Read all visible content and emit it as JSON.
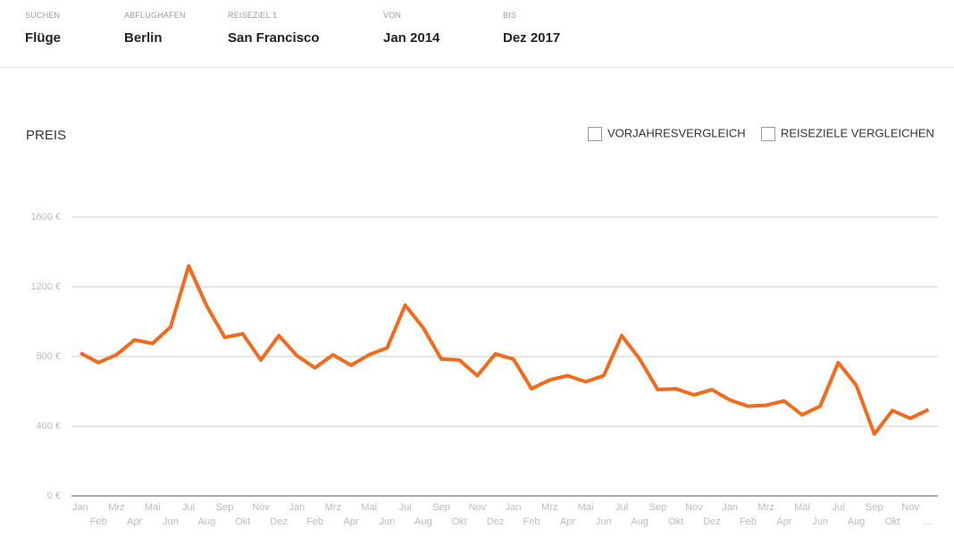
{
  "header": {
    "fields": [
      {
        "label": "SUCHEN",
        "value": "Flüge"
      },
      {
        "label": "ABFLUGHAFEN",
        "value": "Berlin"
      },
      {
        "label": "REISEZIEL 1",
        "value": "San Francisco"
      },
      {
        "label": "VON",
        "value": "Jan 2014"
      },
      {
        "label": "BIS",
        "value": "Dez 2017"
      }
    ]
  },
  "options": [
    "VORJAHRESVERGLEICH",
    "REISEZIELE VERGLEICHEN"
  ],
  "chart_data": {
    "type": "line",
    "title": "PREIS",
    "categories": [
      "Jan",
      "Feb",
      "Mrz",
      "Apr",
      "Mai",
      "Jun",
      "Jul",
      "Aug",
      "Sep",
      "Okt",
      "Nov",
      "Dez",
      "Jan",
      "Feb",
      "Mrz",
      "Apr",
      "Mai",
      "Jun",
      "Jul",
      "Aug",
      "Sep",
      "Okt",
      "Nov",
      "Dez",
      "Jan",
      "Feb",
      "Mrz",
      "Apr",
      "Mai",
      "Jun",
      "Jul",
      "Aug",
      "Sep",
      "Okt",
      "Nov",
      "Dez",
      "Jan",
      "Feb",
      "Mrz",
      "Apr",
      "Mai",
      "Jun",
      "Jul",
      "Aug",
      "Sep",
      "Okt",
      "Nov",
      "…"
    ],
    "series": [
      {
        "name": "Preis",
        "color": "#f26a1b",
        "values": [
          820,
          765,
          810,
          895,
          875,
          970,
          1320,
          1090,
          910,
          930,
          780,
          920,
          805,
          735,
          810,
          750,
          810,
          850,
          1095,
          965,
          785,
          780,
          690,
          815,
          785,
          615,
          665,
          690,
          655,
          690,
          920,
          785,
          610,
          615,
          580,
          610,
          550,
          515,
          520,
          545,
          465,
          515,
          765,
          635,
          355,
          490,
          445,
          495
        ]
      }
    ],
    "ylim": [
      0,
      1600
    ],
    "yticks": [
      {
        "value": 0,
        "label": "0 €"
      },
      {
        "value": 400,
        "label": "400 €"
      },
      {
        "value": 800,
        "label": "800 €"
      },
      {
        "value": 1200,
        "label": "1200 €"
      },
      {
        "value": 1600,
        "label": "1600 €"
      }
    ],
    "grid": true
  }
}
